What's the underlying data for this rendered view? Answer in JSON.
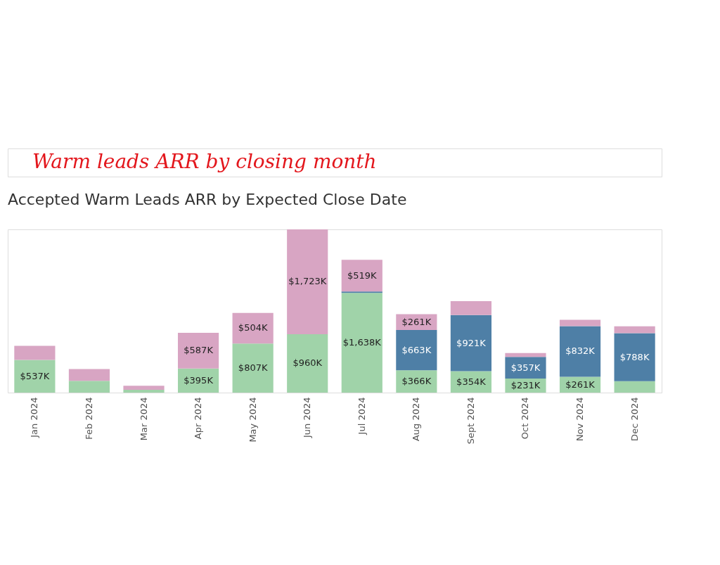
{
  "chart_data": {
    "type": "bar",
    "title": "Accepted Warm Leads ARR by Expected Close Date",
    "annotations": [
      "Warm leads ARR by closing month"
    ],
    "stacked": true,
    "legend": false,
    "grid": false,
    "tick_labels": "x",
    "categories": [
      "Jan 2024",
      "Feb 2024",
      "Mar 2024",
      "Apr 2024",
      "May 2024",
      "Jun 2024",
      "Jul 2024",
      "Aug 2024",
      "Sept 2024",
      "Oct 2024",
      "Nov 2024",
      "Dec 2024"
    ],
    "series": [
      {
        "color": "#a0d3a9",
        "values": [
          537,
          193,
          46,
          395,
          807,
          960,
          1638,
          366,
          354,
          231,
          261,
          189
        ],
        "value_labels": [
          "$537K",
          null,
          null,
          "$395K",
          "$807K",
          "$960K",
          "$1,638K",
          "$366K",
          "$354K",
          "$231K",
          "$261K",
          null
        ]
      },
      {
        "color": "#4e7fa6",
        "values": [
          0,
          0,
          0,
          0,
          0,
          0,
          25,
          663,
          921,
          357,
          832,
          788
        ],
        "value_labels": [
          null,
          null,
          null,
          null,
          null,
          null,
          null,
          "$663K",
          "$921K",
          "$357K",
          "$832K",
          "$788K"
        ]
      },
      {
        "color": "#d8a5c3",
        "values": [
          232,
          193,
          66,
          587,
          504,
          1723,
          519,
          261,
          228,
          62,
          104,
          112
        ],
        "value_labels": [
          null,
          null,
          null,
          "$587K",
          "$504K",
          "$1,723K",
          "$519K",
          "$261K",
          null,
          null,
          null,
          null
        ]
      }
    ]
  }
}
